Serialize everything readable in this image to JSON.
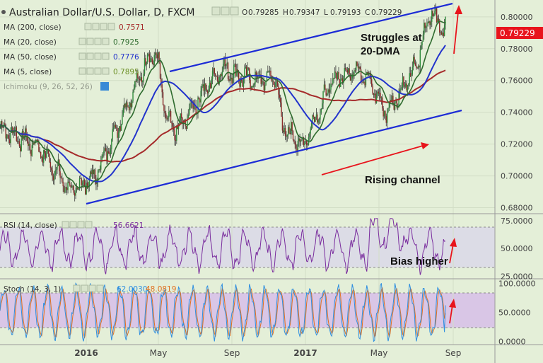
{
  "header": {
    "title": "Australian Dollar/U.S. Dollar, D, FXCM",
    "ohlc": [
      {
        "label": "O",
        "value": "0.79285"
      },
      {
        "label": "H",
        "value": "0.79347"
      },
      {
        "label": "L",
        "value": "0.79193"
      },
      {
        "label": "C",
        "value": "0.79229"
      }
    ]
  },
  "indicators": [
    {
      "label": "MA (200, close)",
      "value": "0.7571",
      "color": "#a52a2a"
    },
    {
      "label": "MA (20, close)",
      "value": "0.7925",
      "color": "#2e6b2e"
    },
    {
      "label": "MA (50, close)",
      "value": "0.7776",
      "color": "#2233cc"
    },
    {
      "label": "MA (5, close)",
      "value": "0.7895",
      "color": "#6b8e23"
    },
    {
      "label": "Ichimoku (9, 26, 52, 26)",
      "value": "",
      "color": "#8fb8c8"
    }
  ],
  "rsi_panel": {
    "label": "RSI (14, close)",
    "value": "56.6621"
  },
  "stoch_panel": {
    "label": "Stoch (14, 3, 1)",
    "k": "62.0030",
    "d": "48.0819"
  },
  "annotations": {
    "struggles_line1": "Struggles at",
    "struggles_line2": "20-DMA",
    "rising_channel": "Rising channel",
    "bias_higher": "Bias higher"
  },
  "last_price_tag": "0.79229",
  "colors": {
    "background": "#e4efd8",
    "price_tag": "#e8141c",
    "channel": "#1c2bd6",
    "arrows": "#e8141c",
    "rsi_line": "#7a2d9e",
    "rsi_band": "#dcdce6",
    "stoch_k": "#2f8fe0",
    "stoch_d": "#e07020",
    "stoch_band": "#d9c6e6"
  },
  "chart_data": [
    {
      "type": "candlestick",
      "title": "Australian Dollar/U.S. Dollar, D, FXCM",
      "x_ticks": [
        "2016",
        "May",
        "Sep",
        "2017",
        "May",
        "Sep"
      ],
      "y_ticks": [
        "0.80000",
        "0.78000",
        "0.76000",
        "0.74000",
        "0.72000",
        "0.70000",
        "0.68000"
      ],
      "ylim": [
        0.678,
        0.8075
      ],
      "close_path": [
        [
          "Nov 2015",
          0.73
        ],
        [
          "Dec 2015",
          0.718
        ],
        [
          "Jan 2016",
          0.69
        ],
        [
          "Late Jan 2016",
          0.7
        ],
        [
          "Mar 2016",
          0.745
        ],
        [
          "Apr 2016",
          0.776
        ],
        [
          "Late Apr 2016",
          0.775
        ],
        [
          "May 2016",
          0.735
        ],
        [
          "Jun 2016",
          0.728
        ],
        [
          "Jul 2016",
          0.755
        ],
        [
          "Aug 2016",
          0.768
        ],
        [
          "Sep 2016",
          0.763
        ],
        [
          "Oct 2016",
          0.76
        ],
        [
          "Nov 2016",
          0.762
        ],
        [
          "Dec 2016",
          0.73
        ],
        [
          "Late Dec 2016",
          0.719
        ],
        [
          "Feb 2017",
          0.76
        ],
        [
          "Mar 2017",
          0.768
        ],
        [
          "Apr 2017",
          0.758
        ],
        [
          "May 2017",
          0.74
        ],
        [
          "Jun 2017",
          0.755
        ],
        [
          "Jul 2017",
          0.77
        ],
        [
          "Late Jul 2017",
          0.803
        ],
        [
          "Aug 2017",
          0.792
        ]
      ],
      "last_close": 0.79229,
      "ma_values": {
        "MA 200": 0.7571,
        "MA 20": 0.7925,
        "MA 50": 0.7776,
        "MA 5": 0.7895
      },
      "channel": {
        "upper": [
          [
            "Mar 2016",
            0.774
          ],
          [
            "Aug 2017",
            0.81
          ]
        ],
        "lower": [
          [
            "Jan 2016",
            0.681
          ],
          [
            "Aug 2017",
            0.742
          ]
        ]
      }
    },
    {
      "type": "line",
      "title": "RSI (14, close)",
      "y_ticks": [
        "75.0000",
        "50.0000",
        "25.0000"
      ],
      "ylim": [
        24,
        80
      ],
      "band": [
        30,
        70
      ],
      "last_value": 56.6621
    },
    {
      "type": "line",
      "title": "Stoch (14, 3, 1)",
      "y_ticks": [
        "100.0000",
        "50.0000",
        "0.0000"
      ],
      "ylim": [
        -2,
        104
      ],
      "band": [
        20,
        80
      ],
      "series": [
        {
          "name": "%K",
          "last": 62.003
        },
        {
          "name": "%D",
          "last": 48.0819
        }
      ]
    }
  ]
}
